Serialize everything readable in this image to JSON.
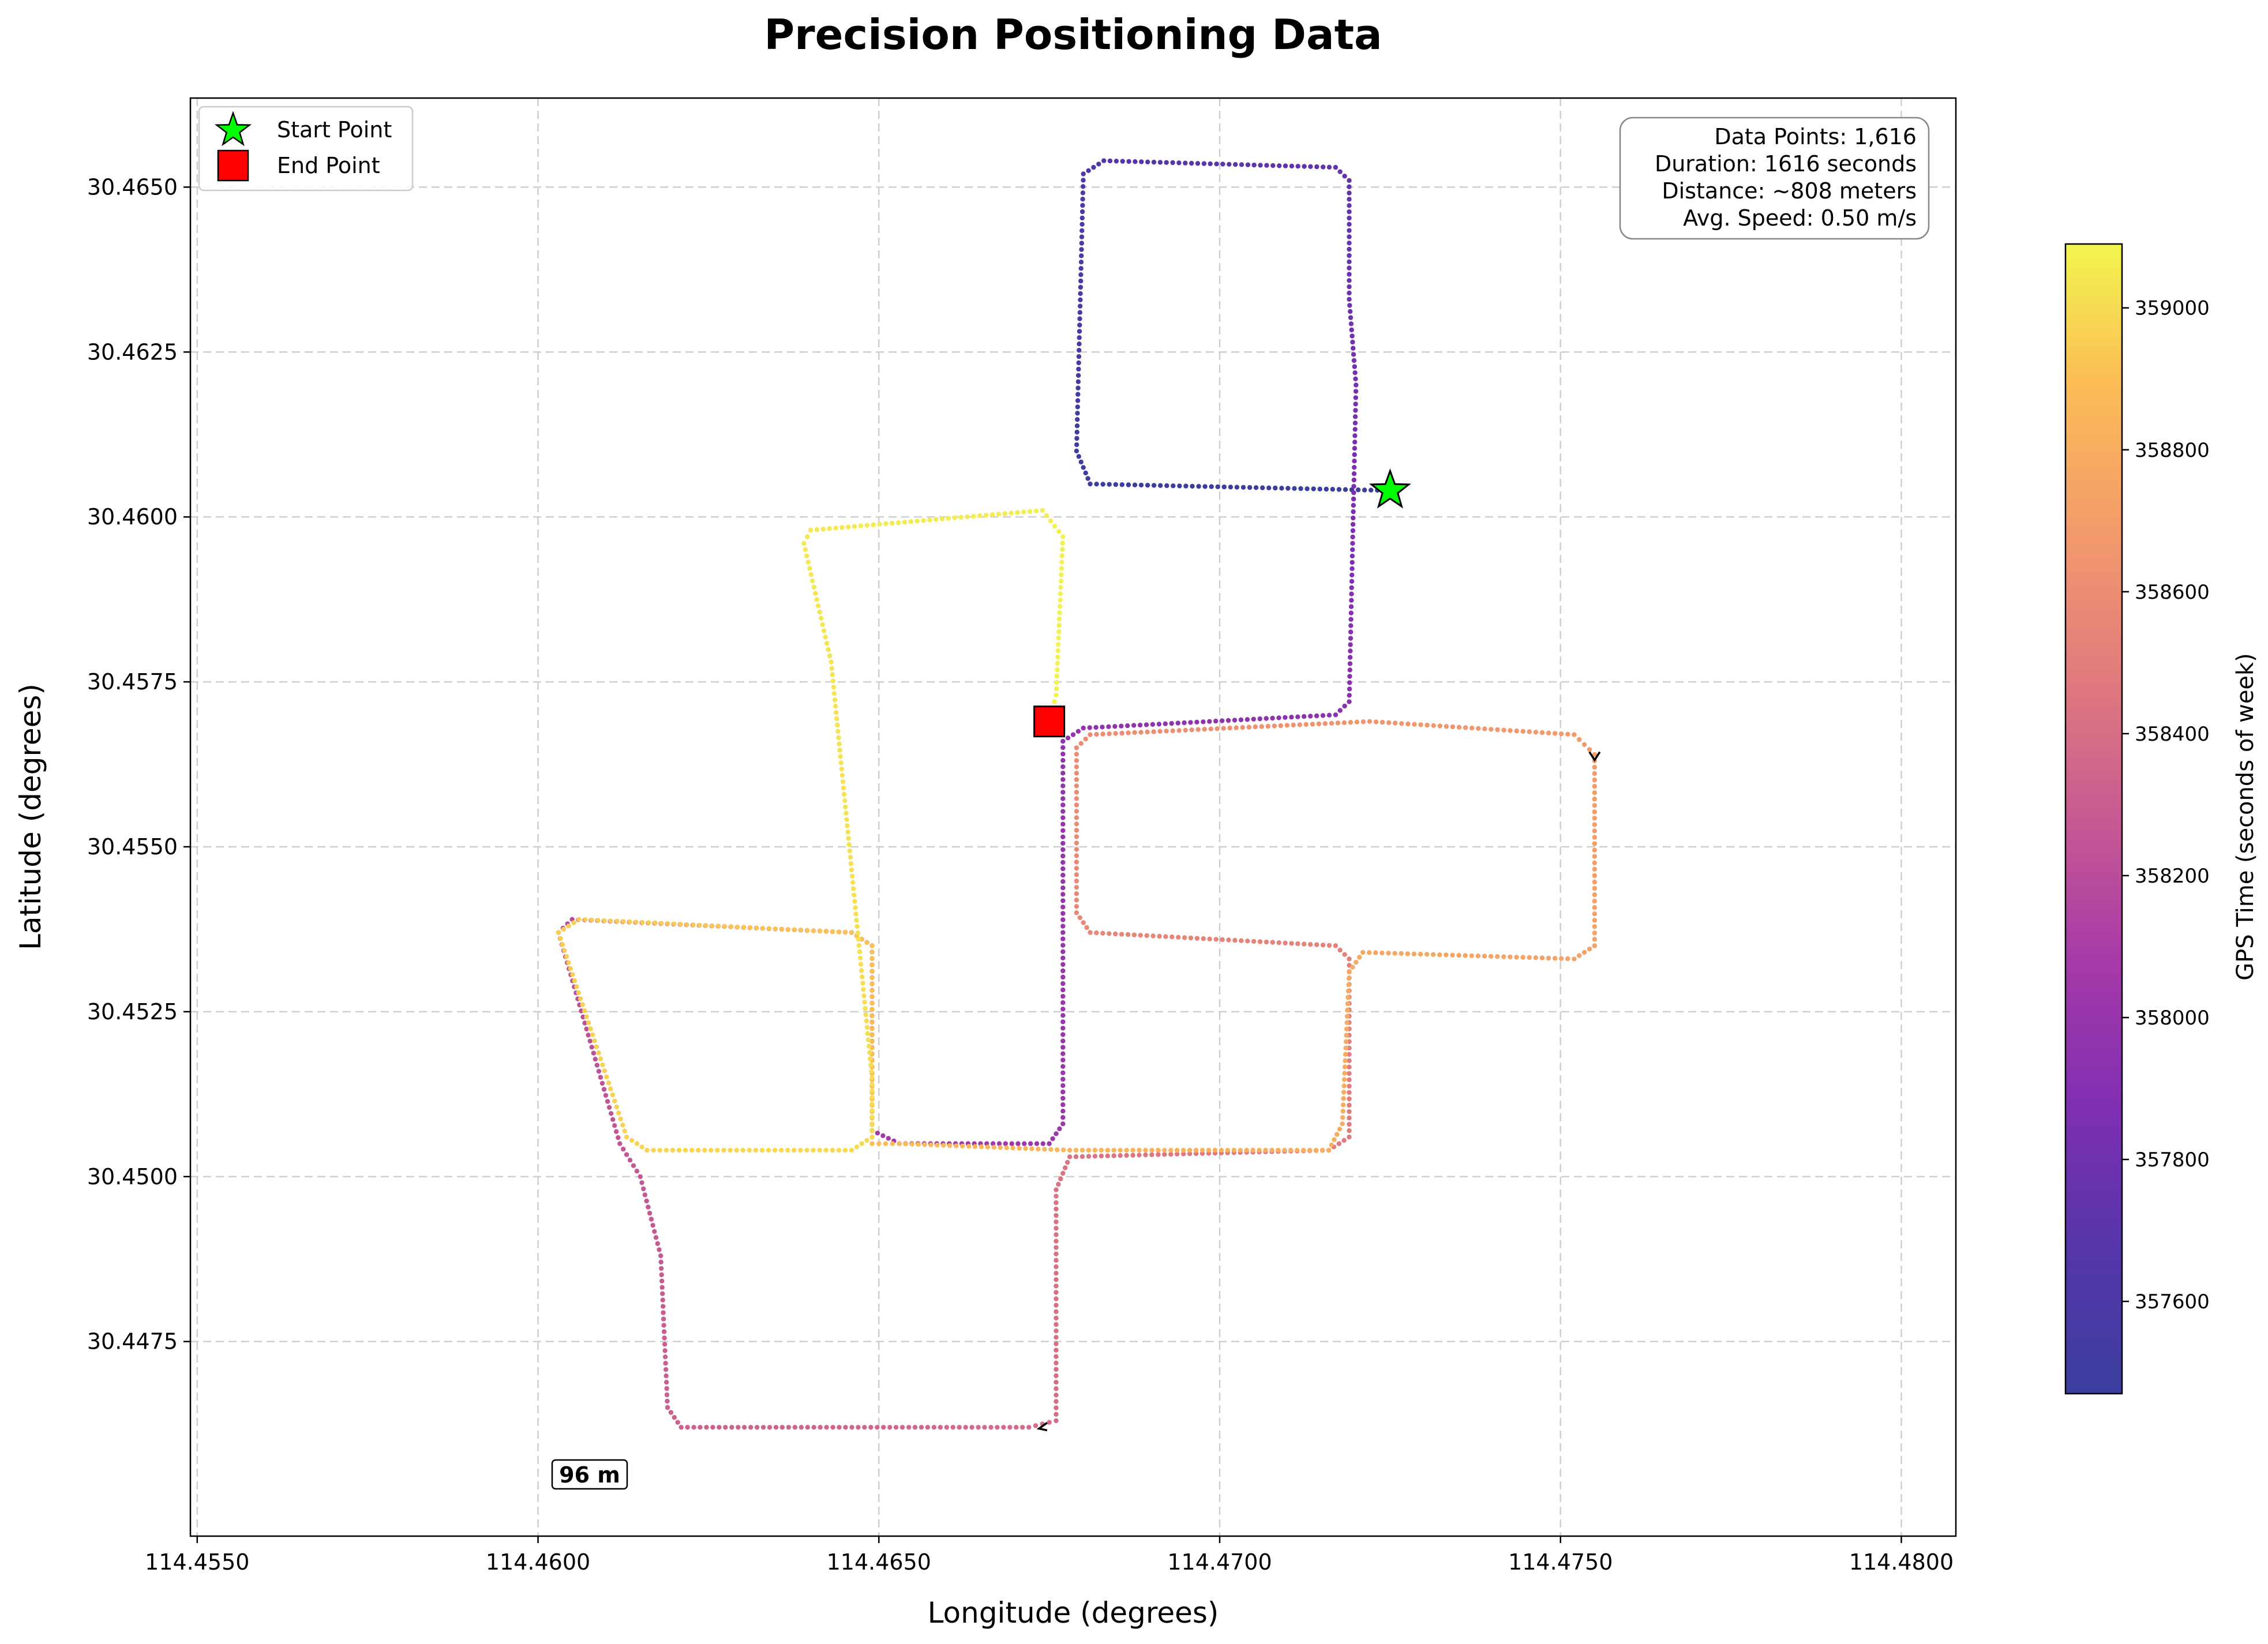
{
  "chart_data": {
    "type": "scatter",
    "title": "Precision Positioning Data",
    "xlabel": "Longitude (degrees)",
    "ylabel": "Latitude (degrees)",
    "xlim": [
      114.4549,
      114.4808
    ],
    "ylim": [
      30.44455,
      30.46635
    ],
    "x_ticks": [
      114.455,
      114.46,
      114.465,
      114.47,
      114.475,
      114.48
    ],
    "x_tick_labels": [
      "114.4550",
      "114.4600",
      "114.4650",
      "114.4700",
      "114.4750",
      "114.4800"
    ],
    "y_ticks": [
      30.4475,
      30.45,
      30.4525,
      30.455,
      30.4575,
      30.46,
      30.4625,
      30.465
    ],
    "y_tick_labels": [
      "30.4475",
      "30.4500",
      "30.4525",
      "30.4550",
      "30.4575",
      "30.4600",
      "30.4625",
      "30.4650"
    ],
    "grid": true,
    "colormap": "plasma",
    "colorbar": {
      "label": "GPS Time (seconds of week)",
      "range": [
        357470,
        359090
      ],
      "ticks": [
        357600,
        357800,
        358000,
        358200,
        358400,
        358600,
        358800,
        359000
      ],
      "tick_labels": [
        "357600",
        "357800",
        "358000",
        "358200",
        "358400",
        "358600",
        "358800",
        "359000"
      ]
    },
    "trajectory_vertices": [
      {
        "x": 114.4725,
        "y": 30.4604,
        "t": 357470
      },
      {
        "x": 114.4681,
        "y": 30.4605,
        "t": 357497
      },
      {
        "x": 114.4679,
        "y": 30.461,
        "t": 357515
      },
      {
        "x": 114.468,
        "y": 30.4652,
        "t": 357638
      },
      {
        "x": 114.4683,
        "y": 30.4654,
        "t": 357650
      },
      {
        "x": 114.4717,
        "y": 30.4653,
        "t": 357735
      },
      {
        "x": 114.4719,
        "y": 30.4651,
        "t": 357742
      },
      {
        "x": 114.4719,
        "y": 30.4633,
        "t": 357790
      },
      {
        "x": 114.472,
        "y": 30.462,
        "t": 357822
      },
      {
        "x": 114.4719,
        "y": 30.4572,
        "t": 357930
      },
      {
        "x": 114.4717,
        "y": 30.457,
        "t": 357936
      },
      {
        "x": 114.468,
        "y": 30.4568,
        "t": 357970
      },
      {
        "x": 114.4677,
        "y": 30.4566,
        "t": 357975
      },
      {
        "x": 114.4677,
        "y": 30.4508,
        "t": 358020
      },
      {
        "x": 114.4675,
        "y": 30.4505,
        "t": 358026
      },
      {
        "x": 114.4653,
        "y": 30.4505,
        "t": 358070
      },
      {
        "x": 114.4649,
        "y": 30.4507,
        "t": 358076
      },
      {
        "x": 114.4649,
        "y": 30.4535,
        "t": 358094
      },
      {
        "x": 114.4646,
        "y": 30.4537,
        "t": 358100
      },
      {
        "x": 114.4605,
        "y": 30.4539,
        "t": 358184
      },
      {
        "x": 114.4603,
        "y": 30.4537,
        "t": 358188
      },
      {
        "x": 114.4612,
        "y": 30.4505,
        "t": 358254
      },
      {
        "x": 114.4615,
        "y": 30.45,
        "t": 358262
      },
      {
        "x": 114.4618,
        "y": 30.4488,
        "t": 358280
      },
      {
        "x": 114.4619,
        "y": 30.4465,
        "t": 358312
      },
      {
        "x": 114.4621,
        "y": 30.4462,
        "t": 358318
      },
      {
        "x": 114.4672,
        "y": 30.4462,
        "t": 358386
      },
      {
        "x": 114.4676,
        "y": 30.4463,
        "t": 358392
      },
      {
        "x": 114.4676,
        "y": 30.4498,
        "t": 358430
      },
      {
        "x": 114.4678,
        "y": 30.4503,
        "t": 358436
      },
      {
        "x": 114.4716,
        "y": 30.4504,
        "t": 358480
      },
      {
        "x": 114.4719,
        "y": 30.4506,
        "t": 358485
      },
      {
        "x": 114.4719,
        "y": 30.4533,
        "t": 358516
      },
      {
        "x": 114.4717,
        "y": 30.4535,
        "t": 358520
      },
      {
        "x": 114.4681,
        "y": 30.4537,
        "t": 358560
      },
      {
        "x": 114.4679,
        "y": 30.454,
        "t": 358565
      },
      {
        "x": 114.4679,
        "y": 30.4565,
        "t": 358596
      },
      {
        "x": 114.4681,
        "y": 30.4567,
        "t": 358600
      },
      {
        "x": 114.4722,
        "y": 30.4569,
        "t": 358650
      },
      {
        "x": 114.4752,
        "y": 30.4567,
        "t": 358688
      },
      {
        "x": 114.4755,
        "y": 30.4564,
        "t": 358694
      },
      {
        "x": 114.4755,
        "y": 30.4535,
        "t": 358730
      },
      {
        "x": 114.4752,
        "y": 30.4533,
        "t": 358735
      },
      {
        "x": 114.4721,
        "y": 30.4534,
        "t": 358776
      },
      {
        "x": 114.4719,
        "y": 30.4531,
        "t": 358780
      },
      {
        "x": 114.4718,
        "y": 30.4508,
        "t": 358800
      },
      {
        "x": 114.4716,
        "y": 30.4504,
        "t": 358806
      },
      {
        "x": 114.4678,
        "y": 30.4504,
        "t": 358850
      },
      {
        "x": 114.4653,
        "y": 30.4505,
        "t": 358880
      },
      {
        "x": 114.4649,
        "y": 30.4505,
        "t": 358886
      },
      {
        "x": 114.4649,
        "y": 30.4535,
        "t": 358905
      },
      {
        "x": 114.4646,
        "y": 30.4537,
        "t": 358910
      },
      {
        "x": 114.4606,
        "y": 30.4539,
        "t": 358950
      },
      {
        "x": 114.4603,
        "y": 30.4537,
        "t": 358954
      },
      {
        "x": 114.4613,
        "y": 30.4506,
        "t": 358975
      },
      {
        "x": 114.4616,
        "y": 30.4504,
        "t": 358980
      },
      {
        "x": 114.4646,
        "y": 30.4504,
        "t": 358998
      },
      {
        "x": 114.4649,
        "y": 30.4506,
        "t": 359002
      },
      {
        "x": 114.4649,
        "y": 30.4515,
        "t": 359008
      },
      {
        "x": 114.4643,
        "y": 30.4578,
        "t": 359035
      },
      {
        "x": 114.4639,
        "y": 30.4596,
        "t": 359046
      },
      {
        "x": 114.464,
        "y": 30.4598,
        "t": 359050
      },
      {
        "x": 114.4674,
        "y": 30.4601,
        "t": 359068
      },
      {
        "x": 114.4677,
        "y": 30.4597,
        "t": 359074
      },
      {
        "x": 114.4676,
        "y": 30.4573,
        "t": 359085
      },
      {
        "x": 114.4675,
        "y": 30.4569,
        "t": 359090
      }
    ],
    "start_point": {
      "x": 114.4725,
      "y": 30.4604
    },
    "end_point": {
      "x": 114.4675,
      "y": 30.4569
    },
    "direction_arrows": [
      {
        "x": 114.4755,
        "y": 30.45635
      },
      {
        "x": 114.4674,
        "y": 30.44618
      }
    ],
    "legend": {
      "placement": "top-left",
      "entries": [
        {
          "label": "Start Point",
          "marker": "star",
          "color": "#00ff00"
        },
        {
          "label": "End Point",
          "marker": "square",
          "color": "#ff0000"
        }
      ]
    },
    "stats_box": {
      "placement": "top-right",
      "lines": [
        "Data Points: 1,616",
        "Duration: 1616 seconds",
        "Distance: ~808 meters",
        "Avg. Speed: 0.50 m/s"
      ]
    },
    "scale_bar": {
      "label": "96 m"
    }
  }
}
